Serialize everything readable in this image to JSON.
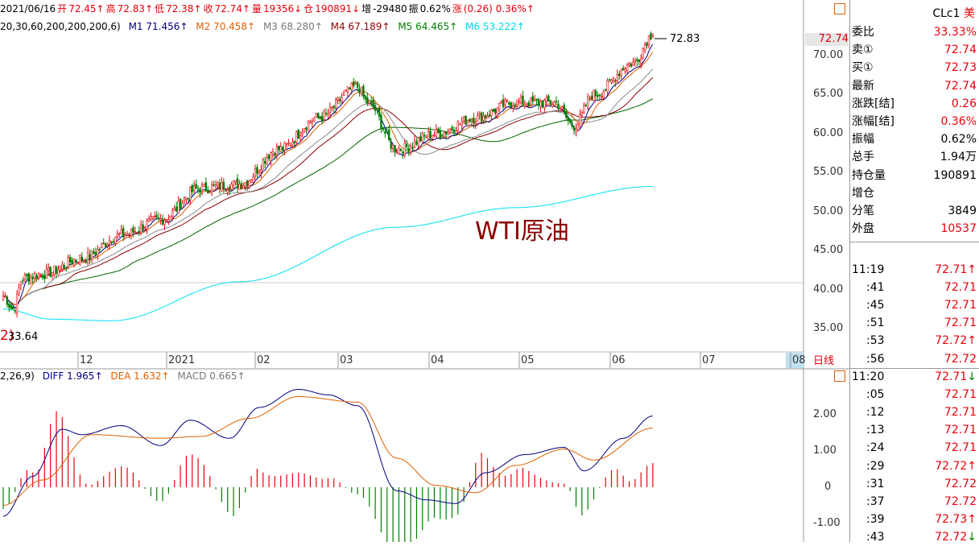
{
  "topbar": {
    "date": "2021/06/16",
    "open_label": "开",
    "open": "72.45↑",
    "high_label": "高",
    "high": "72.83↑",
    "low_label": "低",
    "low": "72.38↑",
    "close_label": "收",
    "close": "72.74↑",
    "vol_label": "量",
    "vol": "19356↓",
    "oi_label": "仓",
    "oi": "190891↓",
    "inc_label": "增",
    "inc": "-29480",
    "amp_label": "振",
    "amp": "0.62%",
    "chg_label": "涨",
    "chg": "(0.26) 0.36%↑"
  },
  "ma_bar": {
    "params": "20,30,60,200,200,200,6)",
    "m1": "M1 71.456↑",
    "m2": "M2 70.458↑",
    "m3": "M3 68.280↑",
    "m4": "M4 67.189↑",
    "m5": "M5 64.465↑",
    "m6": "M6 53.222↑"
  },
  "macd_bar": {
    "params": "2,26,9)",
    "diff": "DIFF 1.965↑",
    "dea": "DEA 1.632↑",
    "macd": "MACD 0.665↑"
  },
  "annotation": "WTI原油",
  "high_marker": "72.83",
  "low_marker": "33.64",
  "low_marker_prefix": "2)",
  "current_price_tag": "72.74",
  "period_label": "日线",
  "time_axis": [
    "12",
    "2021",
    "02",
    "03",
    "04",
    "05",
    "06",
    "07",
    "08"
  ],
  "price_axis": [
    "70.00",
    "65.00",
    "60.00",
    "55.00",
    "50.00",
    "45.00",
    "40.00",
    "35.00"
  ],
  "macd_axis": [
    "2.00",
    "1.00",
    "0",
    "-1.00"
  ],
  "side": {
    "symbol": "CLc1",
    "market": "美",
    "quote": [
      {
        "label": "委比",
        "value": "33.33%",
        "color": "#e8000b"
      },
      {
        "label": "卖①",
        "value": "72.74",
        "color": "#e8000b"
      },
      {
        "label": "买①",
        "value": "72.73",
        "color": "#e8000b"
      },
      {
        "label": "最新",
        "value": "72.74",
        "color": "#e8000b"
      },
      {
        "label": "涨跌[结]",
        "value": "0.26",
        "color": "#e8000b"
      },
      {
        "label": "涨幅[结]",
        "value": "0.36%",
        "color": "#e8000b"
      },
      {
        "label": "振幅",
        "value": "0.62%",
        "color": "#000000"
      },
      {
        "label": "总手",
        "value": "1.94万",
        "color": "#000000"
      },
      {
        "label": "持仓量",
        "value": "190891",
        "color": "#000000"
      },
      {
        "label": "增仓",
        "value": "",
        "color": "#000000"
      },
      {
        "label": "分笔",
        "value": "3849",
        "color": "#000000"
      },
      {
        "label": "外盘",
        "value": "10537",
        "color": "#e8000b"
      }
    ],
    "ticks": [
      {
        "time": "11:19",
        "price": "72.71↑",
        "arrow": "up"
      },
      {
        "time": ":41",
        "price": "72.71",
        "arrow": ""
      },
      {
        "time": ":45",
        "price": "72.71",
        "arrow": ""
      },
      {
        "time": ":51",
        "price": "72.71",
        "arrow": ""
      },
      {
        "time": ":53",
        "price": "72.72↑",
        "arrow": "up"
      },
      {
        "time": ":56",
        "price": "72.72",
        "arrow": ""
      },
      {
        "time": "11:20",
        "price": "72.71↓",
        "arrow": "down"
      },
      {
        "time": ":05",
        "price": "72.71",
        "arrow": ""
      },
      {
        "time": ":12",
        "price": "72.71",
        "arrow": ""
      },
      {
        "time": ":13",
        "price": "72.71",
        "arrow": ""
      },
      {
        "time": ":24",
        "price": "72.71",
        "arrow": ""
      },
      {
        "time": ":29",
        "price": "72.72↑",
        "arrow": "up"
      },
      {
        "time": ":31",
        "price": "72.72",
        "arrow": ""
      },
      {
        "time": ":37",
        "price": "72.72",
        "arrow": ""
      },
      {
        "time": ":39",
        "price": "72.73↑",
        "arrow": "up"
      },
      {
        "time": ":43",
        "price": "72.72↓",
        "arrow": "down"
      }
    ]
  },
  "colors": {
    "up": "#e8000b",
    "down": "#008000",
    "m1": "#000080",
    "m2": "#e06000",
    "m3": "#888888",
    "m4": "#8b0000",
    "m5": "#006400",
    "m6": "#00e0f0"
  },
  "chart_data": {
    "type": "candlestick",
    "price_range": [
      32,
      74
    ],
    "macd_range": [
      -1.45,
      2.9
    ],
    "close_anchors": [
      [
        0,
        39.2
      ],
      [
        5,
        37.5
      ],
      [
        10,
        41.5
      ],
      [
        20,
        42
      ],
      [
        40,
        44
      ],
      [
        60,
        47
      ],
      [
        80,
        49
      ],
      [
        100,
        53
      ],
      [
        120,
        53.5
      ],
      [
        140,
        58
      ],
      [
        160,
        62
      ],
      [
        180,
        66
      ],
      [
        185,
        64
      ],
      [
        200,
        58
      ],
      [
        220,
        60
      ],
      [
        240,
        62
      ],
      [
        260,
        64
      ],
      [
        280,
        64
      ],
      [
        290,
        61
      ],
      [
        300,
        65
      ],
      [
        320,
        69
      ],
      [
        330,
        72.74
      ]
    ],
    "ma_final": {
      "m1": 71.456,
      "m2": 70.458,
      "m3": 68.28,
      "m4": 67.189,
      "m5": 64.465,
      "m6": 53.222
    },
    "m6_anchors": [
      [
        0,
        37.5
      ],
      [
        25,
        36.2
      ],
      [
        55,
        36.0
      ],
      [
        120,
        41
      ],
      [
        200,
        48
      ],
      [
        260,
        50.5
      ],
      [
        330,
        53.222
      ]
    ],
    "diff_anchors": [
      [
        0,
        -0.8
      ],
      [
        15,
        0.3
      ],
      [
        30,
        1.6
      ],
      [
        40,
        1.45
      ],
      [
        60,
        1.7
      ],
      [
        80,
        1.15
      ],
      [
        95,
        1.85
      ],
      [
        115,
        1.35
      ],
      [
        130,
        2.2
      ],
      [
        150,
        2.7
      ],
      [
        165,
        2.55
      ],
      [
        180,
        2.25
      ],
      [
        200,
        -0.1
      ],
      [
        215,
        -0.35
      ],
      [
        230,
        -0.45
      ],
      [
        245,
        0.4
      ],
      [
        265,
        0.9
      ],
      [
        285,
        1.1
      ],
      [
        295,
        0.45
      ],
      [
        315,
        1.35
      ],
      [
        330,
        1.965
      ]
    ],
    "dea_anchors": [
      [
        0,
        -0.5
      ],
      [
        20,
        0.2
      ],
      [
        45,
        1.45
      ],
      [
        80,
        1.35
      ],
      [
        100,
        1.4
      ],
      [
        125,
        1.9
      ],
      [
        150,
        2.5
      ],
      [
        180,
        2.35
      ],
      [
        200,
        0.8
      ],
      [
        220,
        0.05
      ],
      [
        240,
        -0.15
      ],
      [
        260,
        0.6
      ],
      [
        285,
        1.05
      ],
      [
        300,
        0.75
      ],
      [
        330,
        1.632
      ]
    ]
  }
}
